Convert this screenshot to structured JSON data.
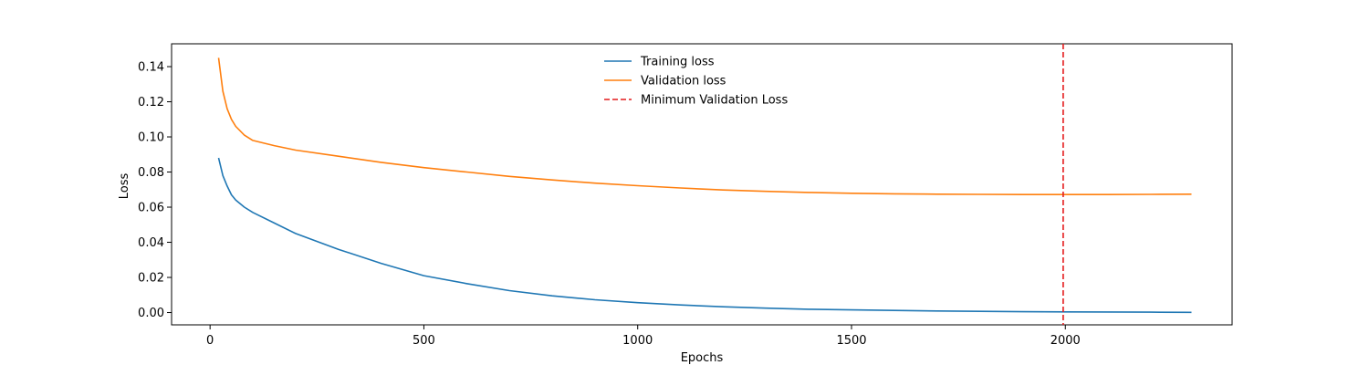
{
  "chart_data": {
    "type": "line",
    "xlabel": "Epochs",
    "ylabel": "Loss",
    "xlim": [
      -90,
      2390
    ],
    "ylim": [
      -0.007,
      0.153
    ],
    "xticks": [
      0,
      500,
      1000,
      1500,
      2000
    ],
    "xtick_labels": [
      "0",
      "500",
      "1000",
      "1500",
      "2000"
    ],
    "yticks": [
      0.0,
      0.02,
      0.04,
      0.06,
      0.08,
      0.1,
      0.12,
      0.14
    ],
    "ytick_labels": [
      "0.00",
      "0.02",
      "0.04",
      "0.06",
      "0.08",
      "0.10",
      "0.12",
      "0.14"
    ],
    "grid": false,
    "legend_position": "top-center",
    "series": [
      {
        "name": "Training loss",
        "color": "#1f77b4",
        "style": "solid",
        "x": [
          20,
          30,
          40,
          50,
          60,
          80,
          100,
          150,
          200,
          300,
          400,
          500,
          600,
          700,
          800,
          900,
          1000,
          1100,
          1200,
          1300,
          1400,
          1500,
          1600,
          1700,
          1800,
          1900,
          2000,
          2100,
          2200,
          2295
        ],
        "y": [
          0.088,
          0.078,
          0.072,
          0.067,
          0.064,
          0.06,
          0.057,
          0.051,
          0.045,
          0.036,
          0.028,
          0.021,
          0.0165,
          0.0125,
          0.0095,
          0.0073,
          0.0056,
          0.0043,
          0.0033,
          0.0025,
          0.0019,
          0.0015,
          0.0012,
          0.0009,
          0.0007,
          0.0005,
          0.0004,
          0.0003,
          0.0002,
          0.0001
        ]
      },
      {
        "name": "Validation loss",
        "color": "#ff7f0e",
        "style": "solid",
        "x": [
          20,
          30,
          40,
          50,
          60,
          80,
          100,
          150,
          200,
          300,
          400,
          500,
          600,
          700,
          800,
          900,
          1000,
          1100,
          1200,
          1300,
          1400,
          1500,
          1600,
          1700,
          1800,
          1900,
          2000,
          2100,
          2200,
          2295
        ],
        "y": [
          0.145,
          0.126,
          0.116,
          0.11,
          0.106,
          0.101,
          0.098,
          0.095,
          0.0925,
          0.089,
          0.0855,
          0.0825,
          0.08,
          0.0775,
          0.0755,
          0.0737,
          0.0722,
          0.0709,
          0.0698,
          0.069,
          0.0684,
          0.0679,
          0.0676,
          0.0674,
          0.0673,
          0.0672,
          0.0672,
          0.0672,
          0.0673,
          0.0674
        ]
      }
    ],
    "annotations": [
      {
        "name": "Minimum Validation Loss",
        "type": "vline",
        "x": 1995,
        "color": "#e41a1c",
        "style": "dashed"
      }
    ]
  }
}
